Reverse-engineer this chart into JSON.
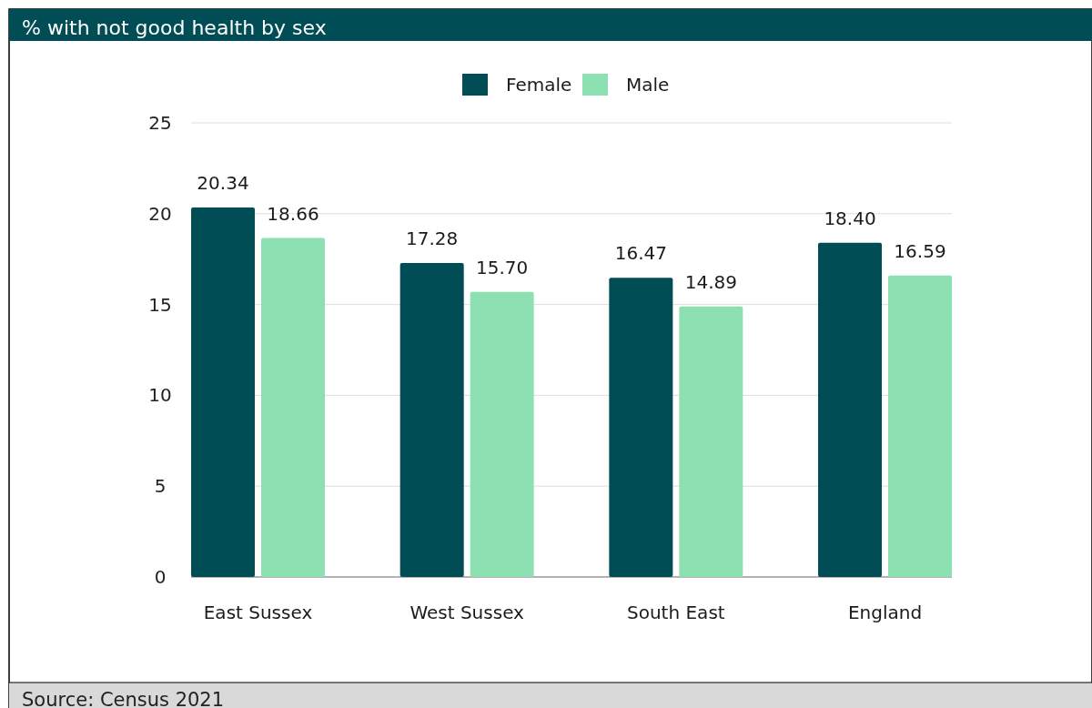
{
  "chart_data": {
    "type": "bar",
    "title": "% with not good health by sex",
    "categories": [
      "East Sussex",
      "West Sussex",
      "South East",
      "England"
    ],
    "series": [
      {
        "name": "Female",
        "color": "#004d56",
        "values": [
          20.34,
          17.28,
          16.47,
          18.4
        ]
      },
      {
        "name": "Male",
        "color": "#8ce0b1",
        "values": [
          18.66,
          15.7,
          14.89,
          16.59
        ]
      }
    ],
    "ylim": [
      0,
      25
    ],
    "yticks": [
      0,
      5,
      10,
      15,
      20,
      25
    ],
    "grid": "y",
    "legend": "top",
    "value_labels": [
      [
        "20.34",
        "17.28",
        "16.47",
        "18.40"
      ],
      [
        "18.66",
        "15.70",
        "14.89",
        "16.59"
      ]
    ],
    "annotations": [
      "Source: Census 2021"
    ]
  }
}
